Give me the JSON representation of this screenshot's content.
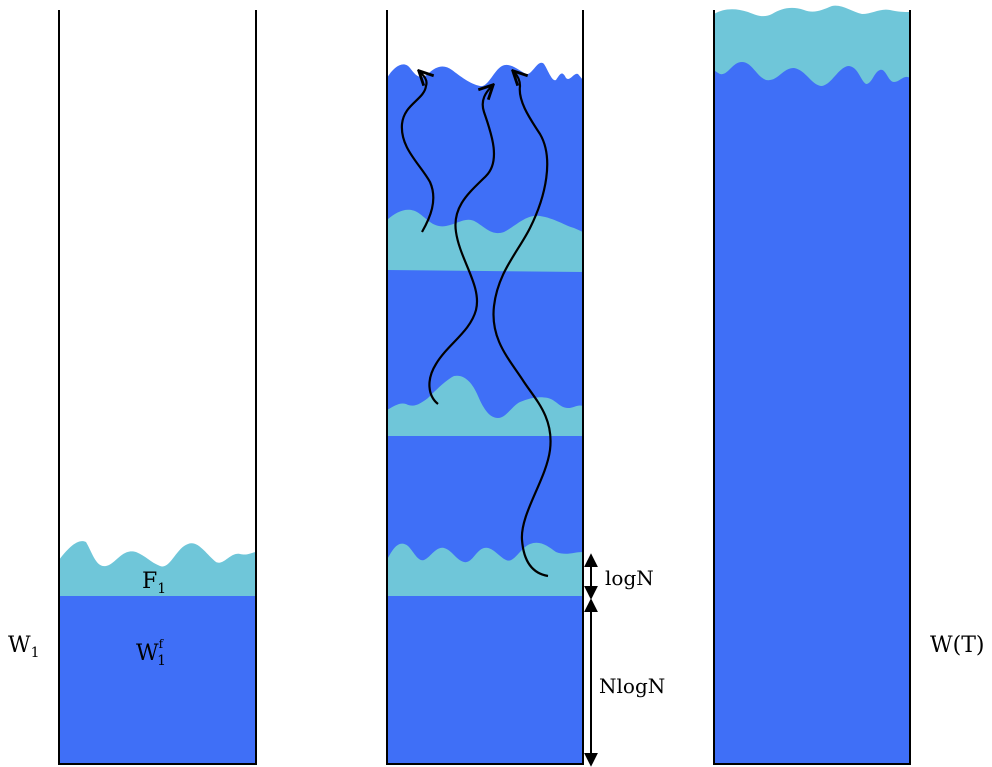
{
  "colors": {
    "deep_blue": "#3f6ff7",
    "light_blue": "#6fc6d9",
    "outline": "#000000"
  },
  "panel_left": {
    "outer_label": "W",
    "outer_sub": "1",
    "surface_label": "F",
    "surface_sub": "1",
    "bulk_label": "W",
    "bulk_sub": "1",
    "bulk_sup": "f"
  },
  "panel_middle": {
    "arrow_top_label": "logN",
    "arrow_bottom_label": "NlogN"
  },
  "panel_right": {
    "label": "W(T)"
  }
}
